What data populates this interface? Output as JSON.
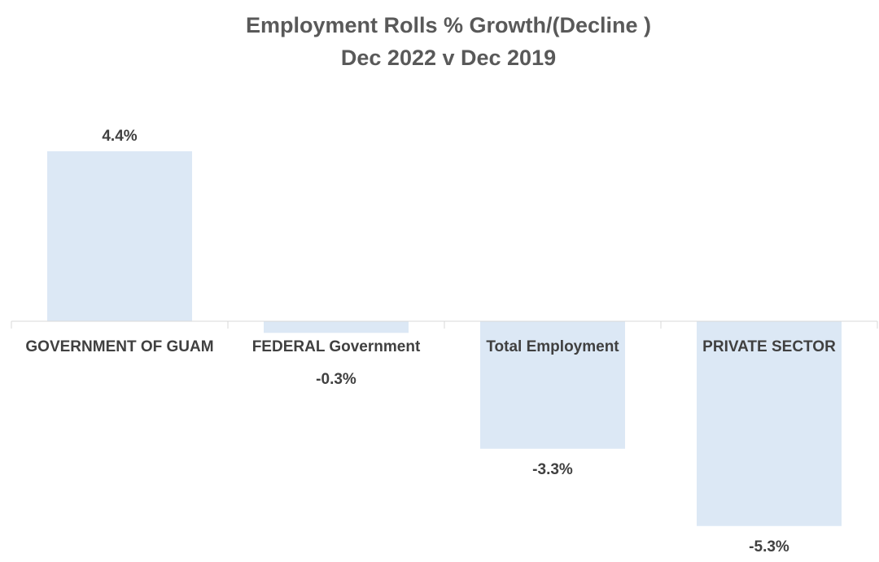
{
  "chart_data": {
    "type": "bar",
    "title": "Employment Rolls % Growth/(Decline )",
    "subtitle": "Dec 2022 v Dec 2019",
    "categories": [
      "GOVERNMENT OF GUAM",
      "FEDERAL Government",
      "Total Employment",
      "PRIVATE SECTOR"
    ],
    "values": [
      4.4,
      -0.3,
      -3.3,
      -5.3
    ],
    "data_labels": [
      "4.4%",
      "-0.3%",
      "-3.3%",
      "-5.3%"
    ],
    "value_unit": "%",
    "ylim": [
      -6.0,
      6.0
    ],
    "grid": false,
    "legend": "none",
    "colors": {
      "bar": "#dce8f5",
      "axis": "#d9d9d9",
      "text": "#404040",
      "title": "#595959"
    }
  }
}
